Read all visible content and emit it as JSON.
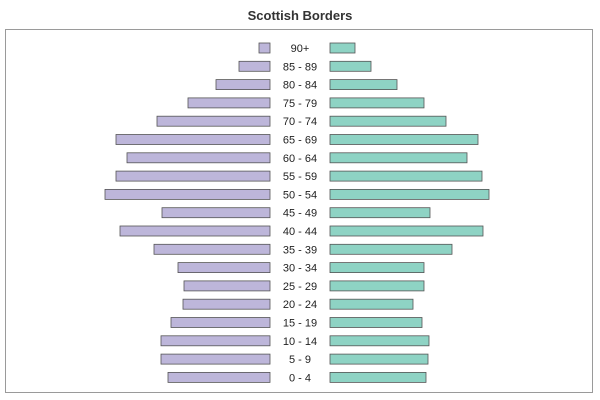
{
  "chart_data": {
    "type": "bar",
    "title": "Scottish Borders",
    "categories": [
      "90+",
      "85 - 89",
      "80 - 84",
      "75 - 79",
      "70 - 74",
      "65 - 69",
      "60 - 64",
      "55 - 59",
      "50 - 54",
      "45 - 49",
      "40 - 44",
      "35 - 39",
      "30 - 34",
      "25 - 29",
      "20 - 24",
      "15 - 19",
      "10 - 14",
      "5 - 9",
      "0 - 4"
    ],
    "xlim": [
      0,
      165
    ],
    "series": [
      {
        "side": "left",
        "color": "#bdb6da",
        "values": [
          11,
          31,
          54,
          82,
          113,
          154,
          143,
          154,
          165,
          108,
          150,
          116,
          92,
          86,
          87,
          99,
          109,
          109,
          102
        ]
      },
      {
        "side": "right",
        "color": "#8ed3c4",
        "values": [
          25,
          41,
          67,
          94,
          116,
          148,
          137,
          152,
          159,
          100,
          153,
          122,
          94,
          94,
          83,
          92,
          99,
          98,
          96
        ]
      }
    ]
  }
}
